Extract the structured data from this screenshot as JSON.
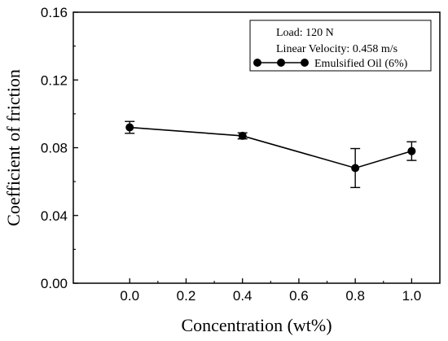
{
  "chart_data": {
    "type": "line",
    "xlabel": "Concentration (wt%)",
    "ylabel": "Coefficient of friction",
    "xlim": [
      -0.2,
      1.1
    ],
    "ylim": [
      0.0,
      0.16
    ],
    "x_ticks": [
      0.0,
      0.2,
      0.4,
      0.6,
      0.8,
      1.0
    ],
    "x_tick_labels": [
      "0.0",
      "0.2",
      "0.4",
      "0.6",
      "0.8",
      "1.0"
    ],
    "y_ticks": [
      0.0,
      0.04,
      0.08,
      0.12,
      0.16
    ],
    "y_tick_labels": [
      "0.00",
      "0.04",
      "0.08",
      "0.12",
      "0.16"
    ],
    "grid": false,
    "legend_placement": "top-right",
    "legend_notes": [
      "Load: 120 N",
      "Linear Velocity: 0.458 m/s"
    ],
    "series": [
      {
        "name": "Emulsified Oil (6%)",
        "x": [
          0.0,
          0.4,
          0.8,
          1.0
        ],
        "y": [
          0.092,
          0.087,
          0.068,
          0.078
        ],
        "error": [
          0.0035,
          0.0018,
          0.0115,
          0.0055
        ],
        "color": "#000000",
        "marker": "circle"
      }
    ]
  }
}
